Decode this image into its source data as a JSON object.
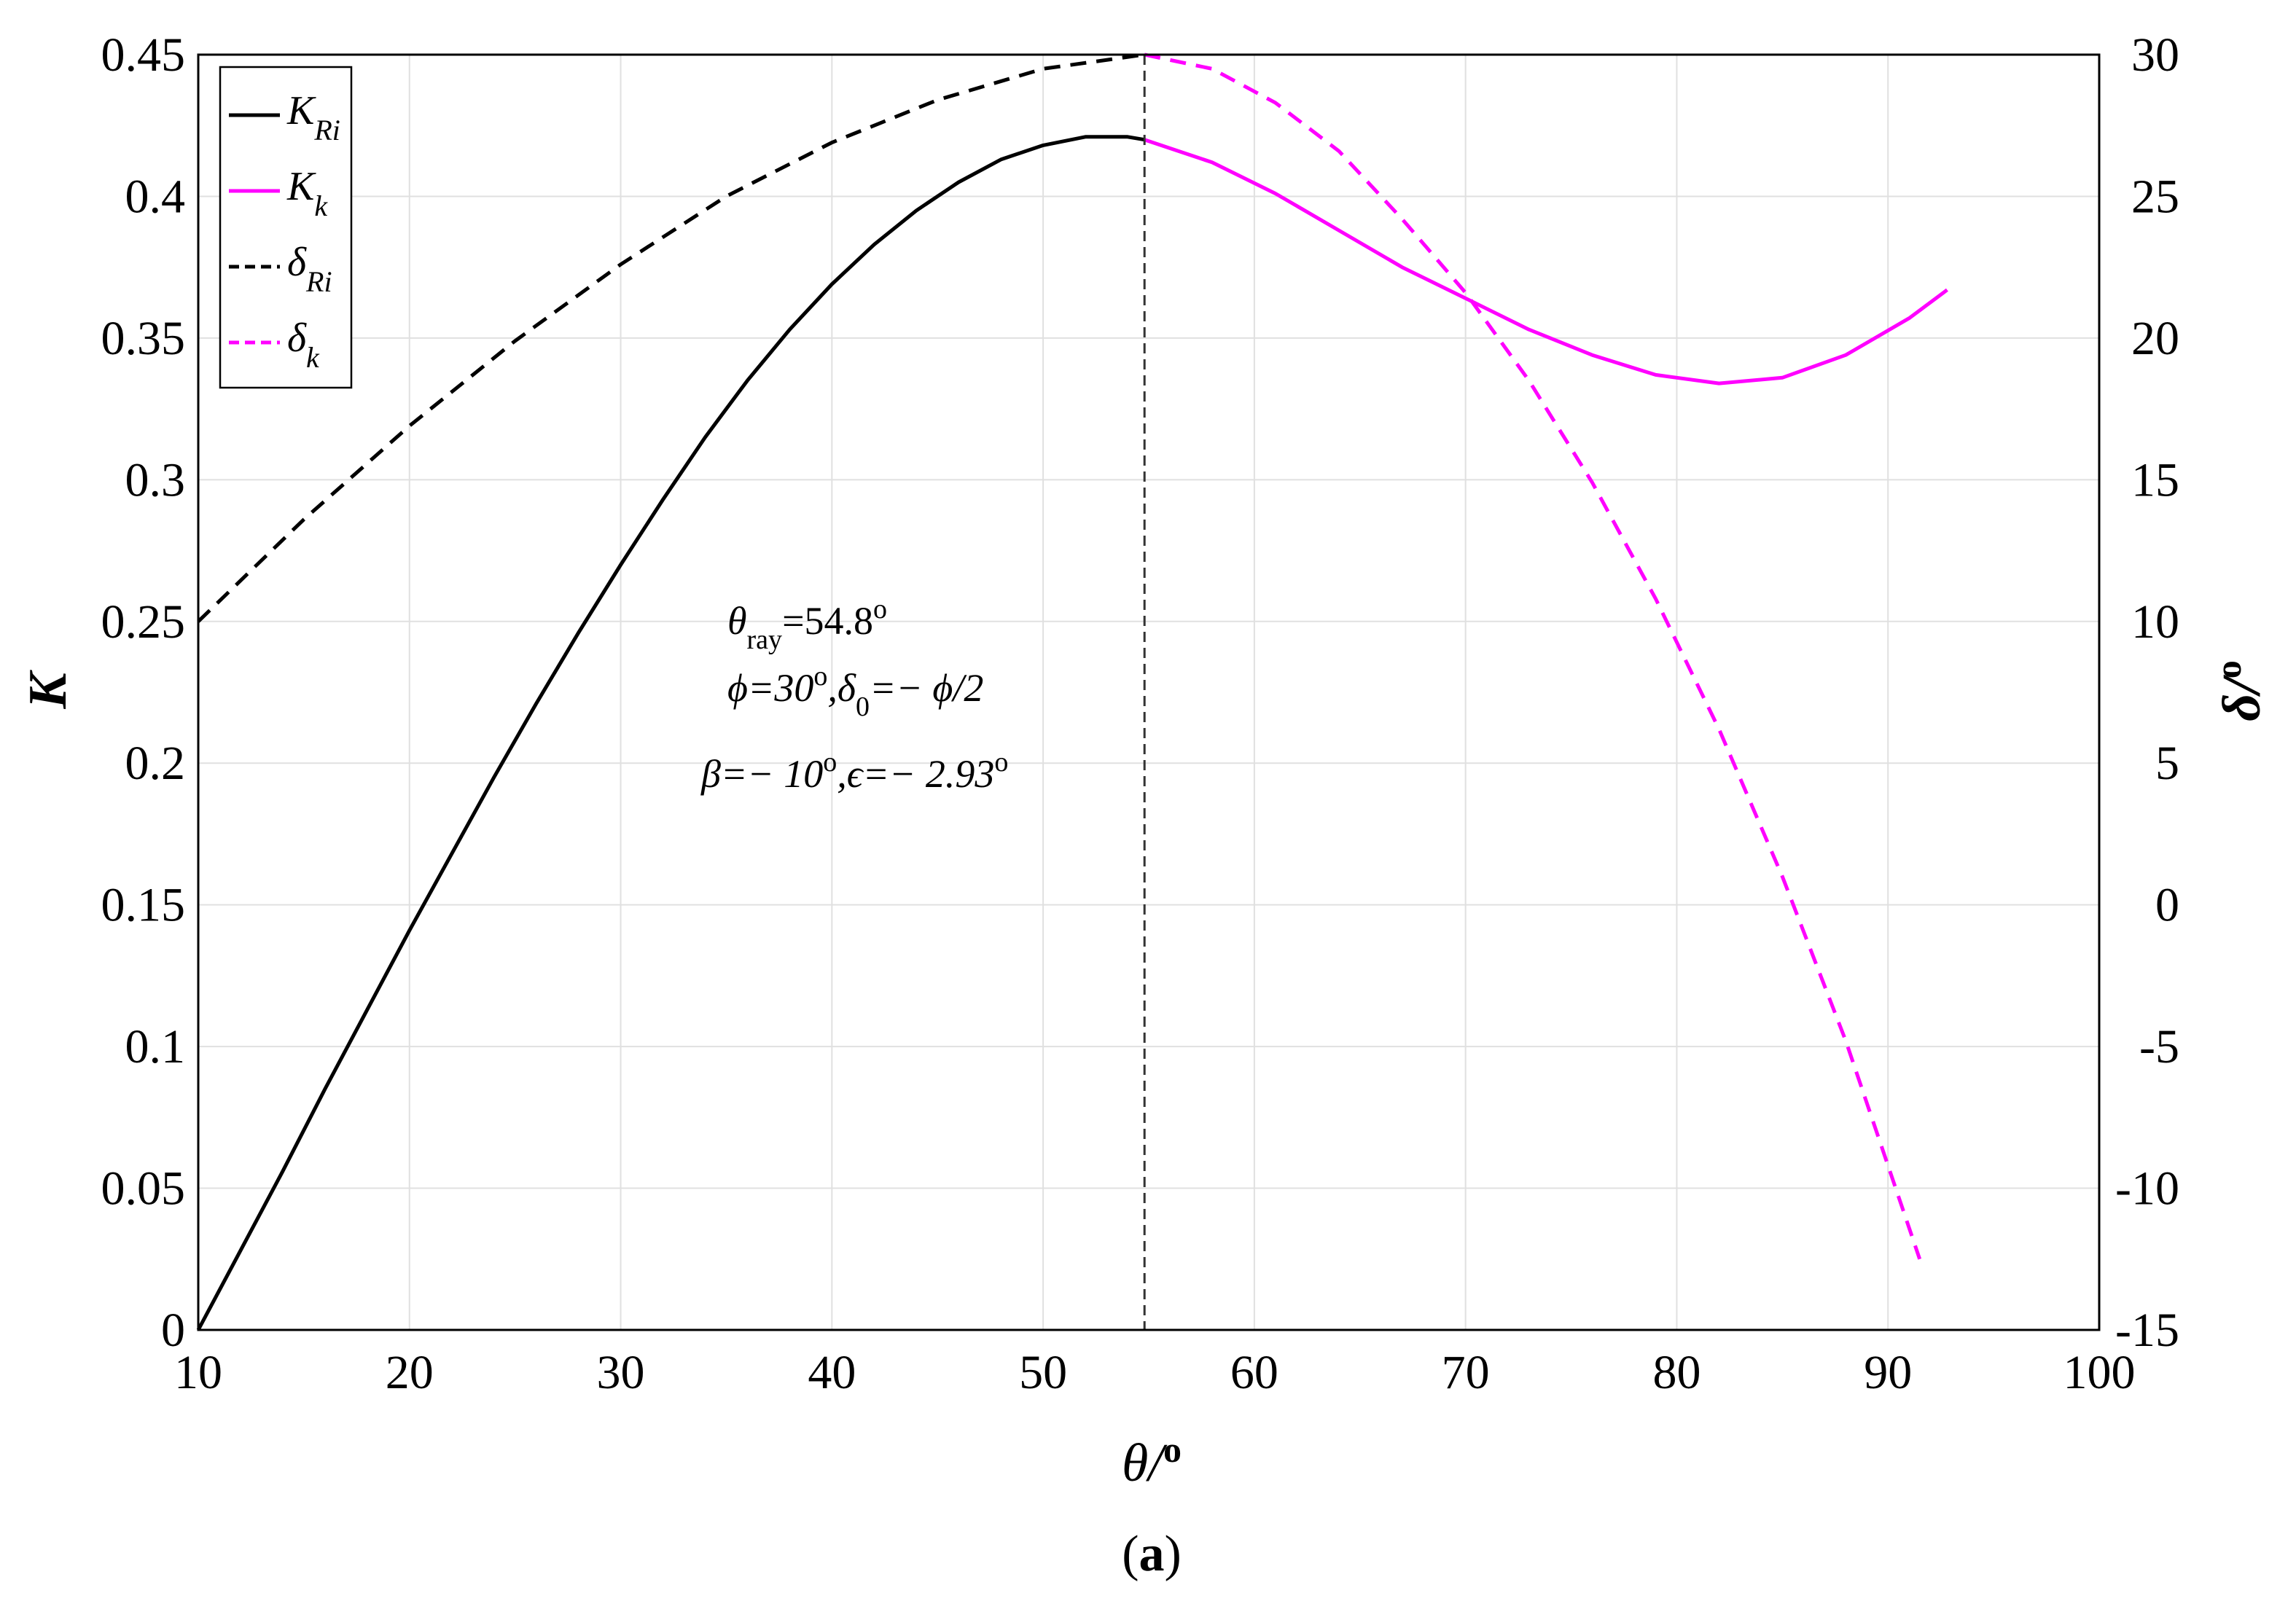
{
  "chart_data": {
    "type": "line",
    "xlabel": "θ/o",
    "ylabel_left": "K",
    "ylabel_right": "δ/o",
    "xlim": [
      10,
      100
    ],
    "ylim_left": [
      0,
      0.45
    ],
    "ylim_right": [
      -15,
      30
    ],
    "x_ticks": [
      "10",
      "20",
      "30",
      "40",
      "50",
      "60",
      "70",
      "80",
      "90",
      "100"
    ],
    "y_ticks_left": [
      "0",
      "0.05",
      "0.1",
      "0.15",
      "0.2",
      "0.25",
      "0.3",
      "0.35",
      "0.4",
      "0.45"
    ],
    "y_ticks_right": [
      "-15",
      "-10",
      "-5",
      "0",
      "5",
      "10",
      "15",
      "20",
      "25",
      "30"
    ],
    "grid": true,
    "legend_position": "top-left",
    "vertical_line_x": 54.8,
    "series": [
      {
        "name": "K_Ri",
        "axis": "left",
        "color": "#000000",
        "dash": "solid",
        "x": [
          10,
          12,
          14,
          16,
          18,
          20,
          22,
          24,
          26,
          28,
          30,
          32,
          34,
          36,
          38,
          40,
          42,
          44,
          46,
          48,
          50,
          52,
          54,
          54.8
        ],
        "y": [
          0.0,
          0.028,
          0.056,
          0.085,
          0.113,
          0.141,
          0.168,
          0.195,
          0.221,
          0.246,
          0.27,
          0.293,
          0.315,
          0.335,
          0.353,
          0.369,
          0.383,
          0.395,
          0.405,
          0.413,
          0.418,
          0.421,
          0.421,
          0.42
        ]
      },
      {
        "name": "K_k",
        "axis": "left",
        "color": "#ff00ff",
        "dash": "solid",
        "x": [
          54.8,
          58,
          61,
          64,
          67,
          70,
          73,
          76,
          79,
          82,
          85,
          88,
          91,
          92.8
        ],
        "y": [
          0.42,
          0.412,
          0.401,
          0.388,
          0.375,
          0.364,
          0.353,
          0.344,
          0.337,
          0.334,
          0.336,
          0.344,
          0.357,
          0.367
        ]
      },
      {
        "name": "δ_Ri",
        "axis": "right",
        "color": "#000000",
        "dash": "dashed",
        "x": [
          10,
          15,
          20,
          25,
          30,
          35,
          40,
          45,
          50,
          54.8
        ],
        "y": [
          10.0,
          13.6,
          16.9,
          19.9,
          22.6,
          25.0,
          26.9,
          28.4,
          29.5,
          30.0
        ]
      },
      {
        "name": "δ_k",
        "axis": "right",
        "color": "#ff00ff",
        "dash": "dashed",
        "x": [
          54.8,
          58,
          61,
          64,
          67,
          70,
          73,
          76,
          79,
          82,
          85,
          88,
          91.5
        ],
        "y": [
          30.0,
          29.5,
          28.3,
          26.6,
          24.2,
          21.6,
          18.5,
          14.9,
          10.8,
          6.2,
          1.0,
          -4.8,
          -12.5
        ]
      }
    ],
    "legend": [
      {
        "main": "K",
        "sub": "Ri"
      },
      {
        "main": "K",
        "sub": "k"
      },
      {
        "main": "δ",
        "sub": "Ri"
      },
      {
        "main": "δ",
        "sub": "k"
      }
    ],
    "annotation": {
      "line1_sym": "θ",
      "line1_sub": "ray",
      "line1_rest": "=54.8",
      "line1_sup": "o",
      "line2_a": "ϕ=30",
      "line2_sup": "o",
      "line2_b": ",δ",
      "line2_sub": "0",
      "line2_c": "=− ϕ/2",
      "line3_a": "β=− 10",
      "line3_sup1": "o",
      "line3_b": ",ϵ=− 2.93",
      "line3_sup2": "o"
    },
    "xlabel_main": "θ/",
    "xlabel_sup": "o",
    "ylabel_right_main": "δ/",
    "ylabel_right_sup": "o",
    "caption_open": "(",
    "caption": "a",
    "caption_close": ")"
  }
}
